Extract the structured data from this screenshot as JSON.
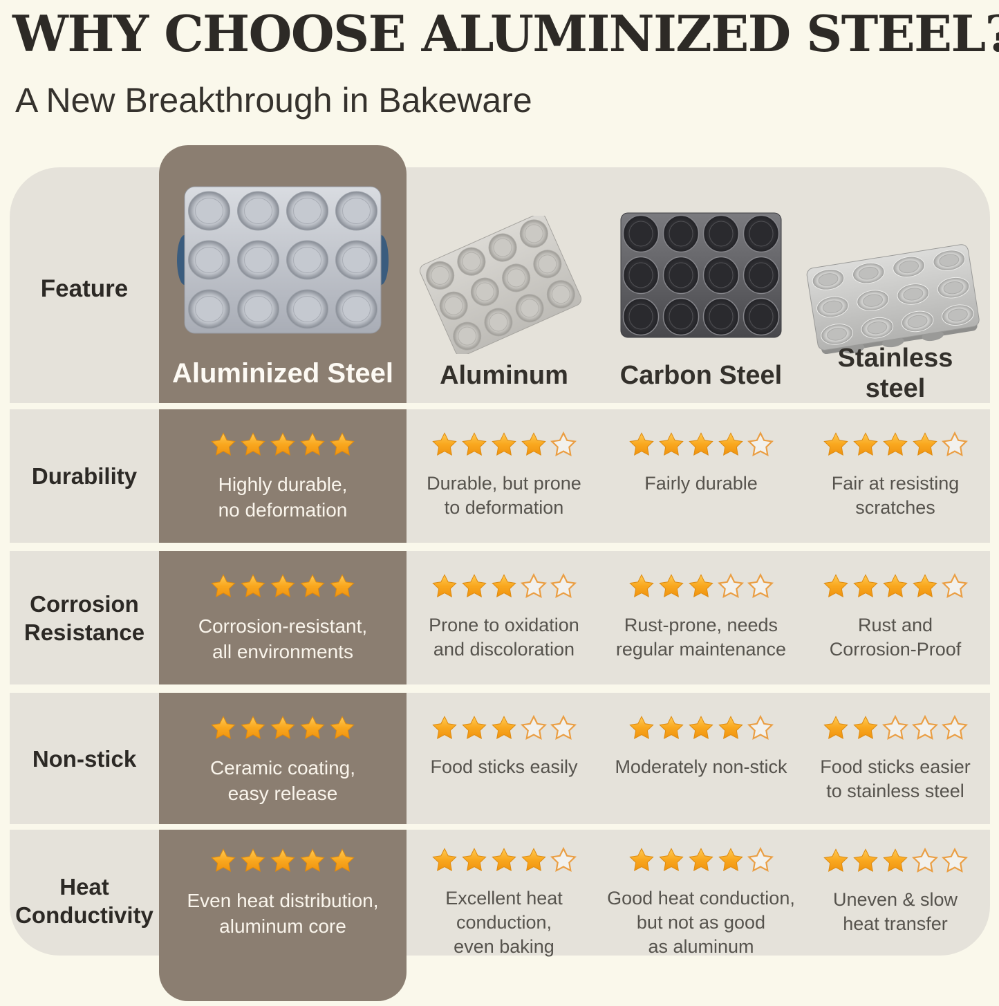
{
  "page": {
    "title": "WHY CHOOSE ALUMINIZED STEEL?",
    "subtitle": "A New Breakthrough in Bakeware"
  },
  "colors": {
    "background": "#FAF8EB",
    "panel_gray": "#E5E2DA",
    "highlight_brown": "#8B7E71",
    "star_gold": "#F7A51F",
    "star_outline": "#EA9E43",
    "text_dark": "#2C2925",
    "text_muted": "#56534D",
    "text_on_highlight": "#FAF5EC"
  },
  "icons": {
    "aluminized_pan": "aluminized-steel-muffin-pan-12cup",
    "aluminum_pan": "aluminum-muffin-pan-12cup",
    "carbon_pan": "carbon-steel-muffin-pan-12cup",
    "stainless_pan": "stainless-steel-muffin-pan-12cup"
  },
  "table": {
    "rating_scale": 5,
    "feature_header": "Feature",
    "columns": [
      {
        "label": "Aluminized Steel",
        "highlight": true
      },
      {
        "label": "Aluminum"
      },
      {
        "label": "Carbon Steel"
      },
      {
        "label": "Stainless\nsteel"
      }
    ],
    "rows": [
      {
        "feature": "Durability",
        "cells": [
          {
            "stars": 5,
            "text": "Highly durable,\nno deformation"
          },
          {
            "stars": 4,
            "text": "Durable, but prone\nto deformation"
          },
          {
            "stars": 4,
            "text": "Fairly durable"
          },
          {
            "stars": 4,
            "text": "Fair at resisting\nscratches"
          }
        ]
      },
      {
        "feature": "Corrosion\nResistance",
        "cells": [
          {
            "stars": 5,
            "text": "Corrosion-resistant,\nall environments"
          },
          {
            "stars": 3,
            "text": "Prone to oxidation\nand discoloration"
          },
          {
            "stars": 3,
            "text": "Rust-prone, needs\nregular maintenance"
          },
          {
            "stars": 4,
            "text": "Rust and\nCorrosion-Proof"
          }
        ]
      },
      {
        "feature": "Non-stick",
        "cells": [
          {
            "stars": 5,
            "text": "Ceramic coating,\neasy release"
          },
          {
            "stars": 3,
            "text": "Food sticks easily"
          },
          {
            "stars": 4,
            "text": "Moderately non-stick"
          },
          {
            "stars": 2,
            "text": "Food sticks easier\nto stainless steel"
          }
        ]
      },
      {
        "feature": "Heat\nConductivity",
        "cells": [
          {
            "stars": 5,
            "text": "Even heat distribution,\naluminum core"
          },
          {
            "stars": 4,
            "text": "Excellent heat\nconduction,\neven baking"
          },
          {
            "stars": 4,
            "text": "Good heat conduction,\nbut not as good\nas aluminum"
          },
          {
            "stars": 3,
            "text": "Uneven & slow\nheat transfer"
          }
        ]
      }
    ]
  },
  "chart_data": {
    "type": "table",
    "title": "WHY CHOOSE ALUMINIZED STEEL?",
    "subtitle": "A New Breakthrough in Bakeware",
    "columns": [
      "Feature",
      "Aluminized Steel",
      "Aluminum",
      "Carbon Steel",
      "Stainless steel"
    ],
    "rating_scale": 5,
    "rows": [
      {
        "feature": "Durability",
        "ratings": [
          5,
          4,
          4,
          4
        ],
        "notes": [
          "Highly durable, no deformation",
          "Durable, but prone to deformation",
          "Fairly durable",
          "Fair at resisting scratches"
        ]
      },
      {
        "feature": "Corrosion Resistance",
        "ratings": [
          5,
          3,
          3,
          4
        ],
        "notes": [
          "Corrosion-resistant, all environments",
          "Prone to oxidation and discoloration",
          "Rust-prone, needs regular maintenance",
          "Rust and Corrosion-Proof"
        ]
      },
      {
        "feature": "Non-stick",
        "ratings": [
          5,
          3,
          4,
          2
        ],
        "notes": [
          "Ceramic coating, easy release",
          "Food sticks easily",
          "Moderately non-stick",
          "Food sticks easier to stainless steel"
        ]
      },
      {
        "feature": "Heat Conductivity",
        "ratings": [
          5,
          4,
          4,
          3
        ],
        "notes": [
          "Even heat distribution, aluminum core",
          "Excellent heat conduction, even baking",
          "Good heat conduction, but not as good as aluminum",
          "Uneven & slow heat transfer"
        ]
      }
    ],
    "highlighted_column": "Aluminized Steel"
  }
}
